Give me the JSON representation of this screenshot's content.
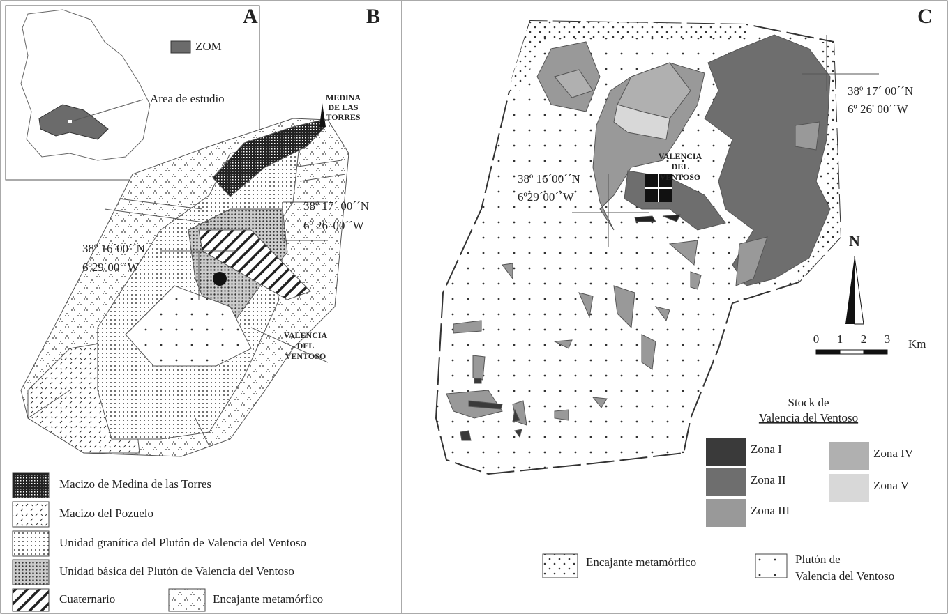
{
  "panel_a": {
    "letter": "A",
    "legend": "ZOM",
    "label": "Area de estudio"
  },
  "panel_b": {
    "letter": "B",
    "places": [
      {
        "lines": [
          "MEDINA",
          "DE LAS",
          "TORRES"
        ]
      },
      {
        "lines": [
          "VALENCIA",
          "DEL",
          "VENTOSO"
        ]
      }
    ],
    "coords": [
      {
        "lat": "38º 17´ 00´´N",
        "lon": "6º 26' 00´´W"
      },
      {
        "lat": "38º 16´00´´N",
        "lon": "6º29´00´´W"
      }
    ],
    "legend": [
      "Macizo de Medina de las Torres",
      "Macizo del Pozuelo",
      "Unidad granítica del Plutón de Valencia del Ventoso",
      "Unidad básica del Plutón de Valencia del Ventoso",
      "Cuaternario",
      "Encajante metamórfico"
    ]
  },
  "panel_c": {
    "letter": "C",
    "place": [
      "VALENCIA",
      "DEL",
      "VENTOSO"
    ],
    "coords": [
      {
        "lat": "38º 17´ 00´´N",
        "lon": "6º 26' 00´´W"
      },
      {
        "lat": "38º 16´00´´N",
        "lon": "6º29´00´´W"
      }
    ],
    "north": "N",
    "scale": {
      "ticks": [
        0,
        1,
        2,
        3
      ],
      "unit": "Km"
    },
    "stock_title": [
      "Stock de",
      "Valencia del Ventoso"
    ],
    "zones": [
      "Zona I",
      "Zona II",
      "Zona III",
      "Zona IV",
      "Zona V"
    ],
    "legend": [
      {
        "lines": [
          "Encajante metamórfico"
        ]
      },
      {
        "lines": [
          "Plutón de",
          "Valencia del Ventoso"
        ]
      }
    ]
  }
}
